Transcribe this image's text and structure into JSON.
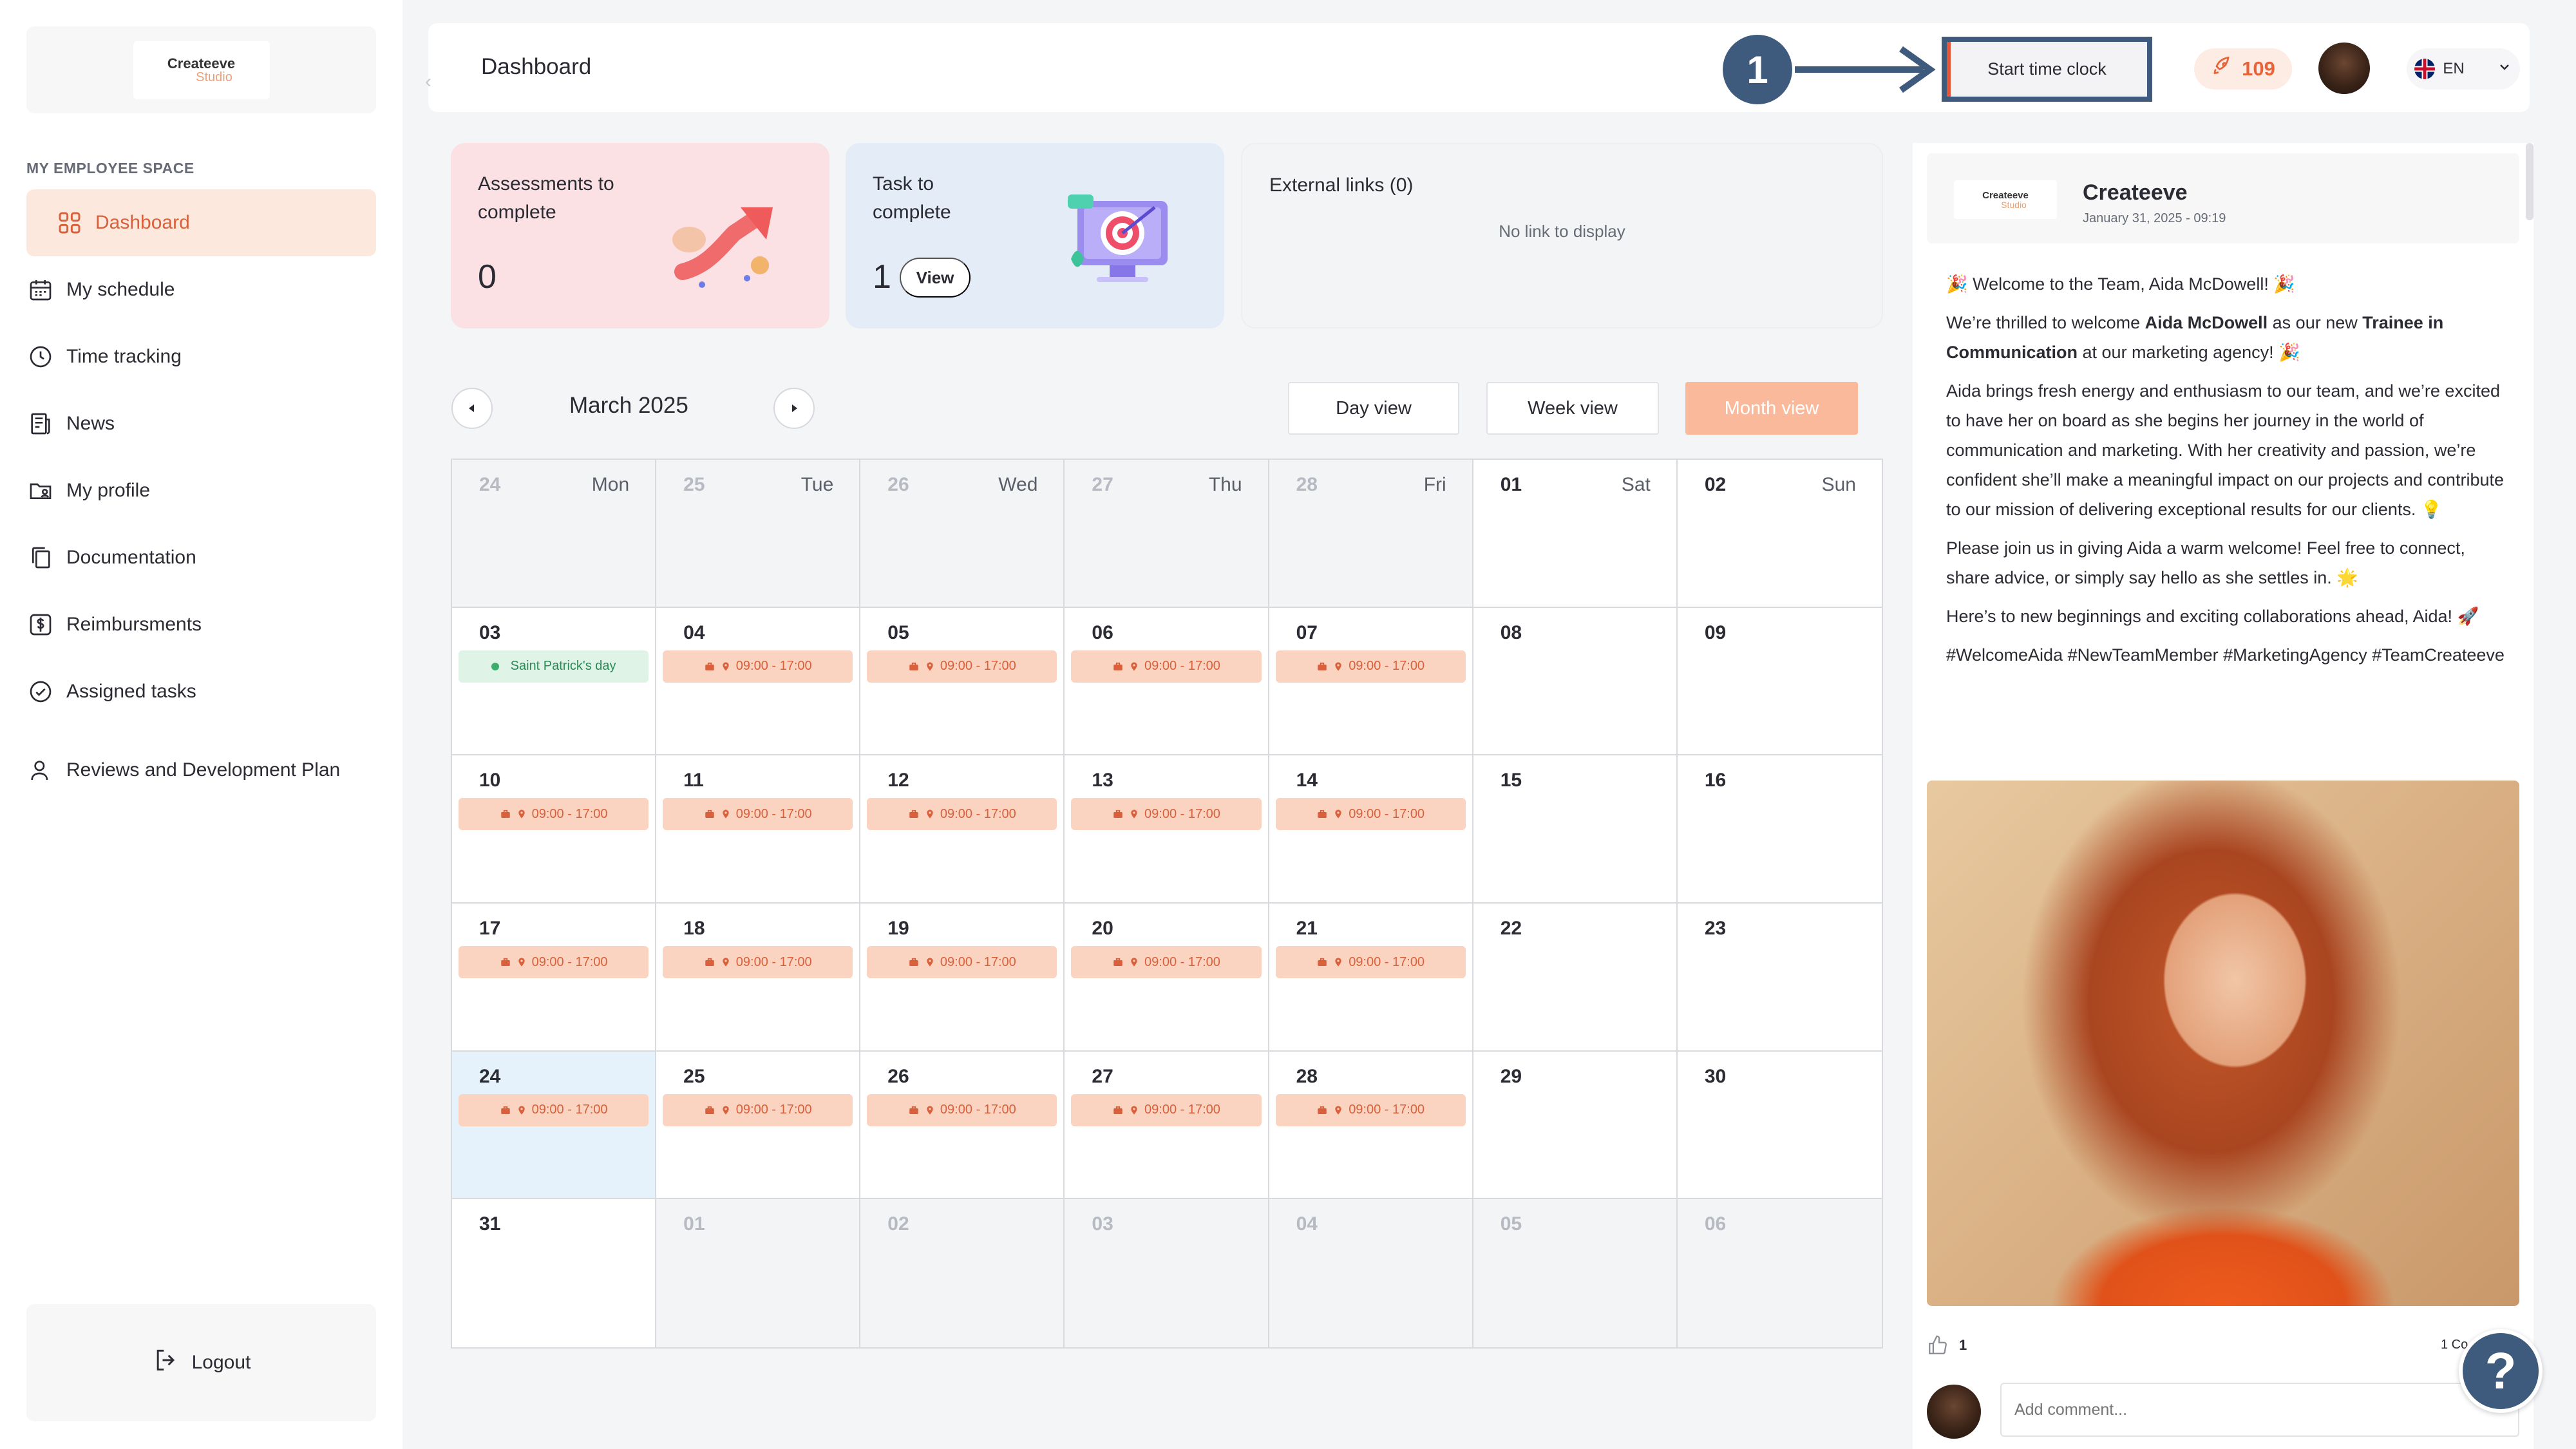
{
  "sidebar": {
    "logo_top": "Createeve",
    "logo_bottom": "Studio",
    "section_label": "MY EMPLOYEE SPACE",
    "items": [
      {
        "label": "Dashboard",
        "icon": "grid-icon",
        "active": true
      },
      {
        "label": "My schedule",
        "icon": "calendar-icon"
      },
      {
        "label": "Time tracking",
        "icon": "clock-icon"
      },
      {
        "label": "News",
        "icon": "newspaper-icon"
      },
      {
        "label": "My profile",
        "icon": "folder-user-icon"
      },
      {
        "label": "Documentation",
        "icon": "documents-icon"
      },
      {
        "label": "Reimbursments",
        "icon": "dollar-icon"
      },
      {
        "label": "Assigned tasks",
        "icon": "check-circle-icon"
      },
      {
        "label": "Reviews and Development Plan",
        "icon": "person-icon"
      }
    ],
    "logout_label": "Logout"
  },
  "header": {
    "title": "Dashboard",
    "step_number": "1",
    "start_clock_label": "Start time clock",
    "points": "109",
    "language": "EN"
  },
  "cards": {
    "assessments": {
      "title": "Assessments to complete",
      "count": "0"
    },
    "tasks": {
      "title": "Task to complete",
      "count": "1",
      "view_label": "View"
    },
    "links": {
      "title": "External links (0)",
      "empty": "No link to display"
    }
  },
  "calendar": {
    "month": "March 2025",
    "views": [
      "Day view",
      "Week view",
      "Month view"
    ],
    "active_view": "Month view",
    "weekdays": [
      "Mon",
      "Tue",
      "Wed",
      "Thu",
      "Fri",
      "Sat",
      "Sun"
    ],
    "weeks": [
      [
        {
          "d": "24",
          "out": true
        },
        {
          "d": "25",
          "out": true
        },
        {
          "d": "26",
          "out": true
        },
        {
          "d": "27",
          "out": true
        },
        {
          "d": "28",
          "out": true
        },
        {
          "d": "01"
        },
        {
          "d": "02"
        }
      ],
      [
        {
          "d": "03",
          "event": "Saint Patrick's day",
          "holiday": true
        },
        {
          "d": "04",
          "event": "09:00 - 17:00"
        },
        {
          "d": "05",
          "event": "09:00 - 17:00"
        },
        {
          "d": "06",
          "event": "09:00 - 17:00"
        },
        {
          "d": "07",
          "event": "09:00 - 17:00"
        },
        {
          "d": "08"
        },
        {
          "d": "09"
        }
      ],
      [
        {
          "d": "10",
          "event": "09:00 - 17:00"
        },
        {
          "d": "11",
          "event": "09:00 - 17:00"
        },
        {
          "d": "12",
          "event": "09:00 - 17:00"
        },
        {
          "d": "13",
          "event": "09:00 - 17:00"
        },
        {
          "d": "14",
          "event": "09:00 - 17:00"
        },
        {
          "d": "15"
        },
        {
          "d": "16"
        }
      ],
      [
        {
          "d": "17",
          "event": "09:00 - 17:00"
        },
        {
          "d": "18",
          "event": "09:00 - 17:00"
        },
        {
          "d": "19",
          "event": "09:00 - 17:00"
        },
        {
          "d": "20",
          "event": "09:00 - 17:00"
        },
        {
          "d": "21",
          "event": "09:00 - 17:00"
        },
        {
          "d": "22"
        },
        {
          "d": "23"
        }
      ],
      [
        {
          "d": "24",
          "event": "09:00 - 17:00",
          "today": true
        },
        {
          "d": "25",
          "event": "09:00 - 17:00"
        },
        {
          "d": "26",
          "event": "09:00 - 17:00"
        },
        {
          "d": "27",
          "event": "09:00 - 17:00"
        },
        {
          "d": "28",
          "event": "09:00 - 17:00"
        },
        {
          "d": "29"
        },
        {
          "d": "30"
        }
      ],
      [
        {
          "d": "31"
        },
        {
          "d": "01",
          "out": true
        },
        {
          "d": "02",
          "out": true
        },
        {
          "d": "03",
          "out": true
        },
        {
          "d": "04",
          "out": true
        },
        {
          "d": "05",
          "out": true
        },
        {
          "d": "06",
          "out": true
        }
      ]
    ]
  },
  "news": {
    "author": "Createeve",
    "date": "January 31, 2025 - 09:19",
    "logo_top": "Createeve",
    "logo_bottom": "Studio",
    "p1": "🎉 Welcome to the Team, Aida McDowell! 🎉",
    "p2_a": "We’re thrilled to welcome ",
    "p2_b": "Aida McDowell",
    "p2_c": " as our new ",
    "p2_d": "Trainee in Communication",
    "p2_e": " at our marketing agency! 🎉",
    "p3": "Aida brings fresh energy and enthusiasm to our team, and we’re excited to have her on board as she begins her journey in the world of communication and marketing. With her creativity and passion, we’re confident she’ll make a meaningful impact on our projects and contribute to our mission of delivering exceptional results for our clients. 💡",
    "p4": "Please join us in giving Aida a warm welcome! Feel free to connect, share advice, or simply say hello as she settles in. 🌟",
    "p5": "Here’s to new beginnings and exciting collaborations ahead, Aida! 🚀",
    "p6": "#WelcomeAida #NewTeamMember #MarketingAgency #TeamCreateeve",
    "likes": "1",
    "comments": "1 Co",
    "comment_placeholder": "Add comment..."
  },
  "help_label": "?"
}
